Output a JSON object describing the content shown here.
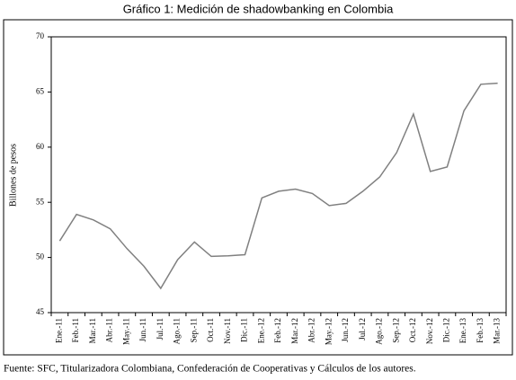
{
  "chart_data": {
    "type": "line",
    "title": "Gráfico 1: Medición de shadowbanking en Colombia",
    "y_label": "Billones de pesos",
    "source": "Fuente: SFC, Titularizadora Colombiana, Confederación de Cooperativas y Cálculos de los autores.",
    "categories": [
      "Ene.-11",
      "Feb.-11",
      "Mar.-11",
      "Abr.-11",
      "May.-11",
      "Jun.-11",
      "Jul.-11",
      "Ago.-11",
      "Sep.-11",
      "Oct.-11",
      "Nov.-11",
      "Dic.-11",
      "Ene.-12",
      "Feb.-12",
      "Mar.-12",
      "Abr.-12",
      "May.-12",
      "Jun.-12",
      "Jul.-12",
      "Ago.-12",
      "Sep.-12",
      "Oct.-12",
      "Nov.-12",
      "Dic.-12",
      "Ene.-13",
      "Feb.-13",
      "Mar.-13"
    ],
    "values": [
      51.5,
      53.9,
      53.4,
      52.6,
      50.8,
      49.2,
      47.2,
      49.8,
      51.4,
      50.1,
      50.15,
      50.25,
      55.4,
      56.0,
      56.2,
      55.8,
      54.7,
      54.9,
      56.0,
      57.3,
      59.5,
      63.0,
      57.8,
      58.2,
      63.3,
      65.7,
      65.8
    ],
    "color": "#808080",
    "ylim": [
      45,
      70
    ],
    "yticks": [
      45,
      50,
      55,
      60,
      65,
      70
    ]
  }
}
